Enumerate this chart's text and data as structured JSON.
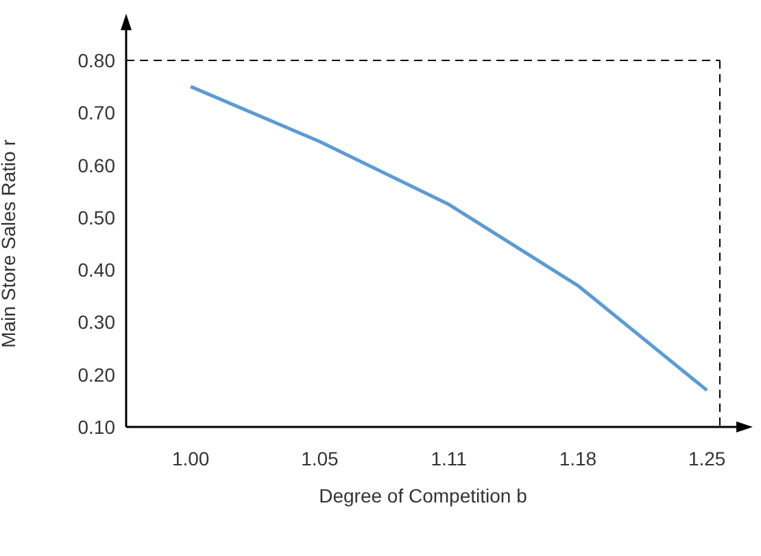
{
  "chart_data": {
    "type": "line",
    "xlabel": "Degree of Competition b",
    "ylabel": "Main Store Sales Ratio r",
    "categories": [
      "1.00",
      "1.05",
      "1.11",
      "1.18",
      "1.25"
    ],
    "series": [
      {
        "color": "#5b9bd5",
        "values": [
          0.75,
          0.645,
          0.525,
          0.37,
          0.17
        ]
      }
    ],
    "ylim": [
      0.1,
      0.8
    ],
    "yticks": [
      {
        "value": 0.1,
        "label": "0.10"
      },
      {
        "value": 0.2,
        "label": "0.20"
      },
      {
        "value": 0.3,
        "label": "0.30"
      },
      {
        "value": 0.4,
        "label": "0.40"
      },
      {
        "value": 0.5,
        "label": "0.50"
      },
      {
        "value": 0.6,
        "label": "0.60"
      },
      {
        "value": 0.7,
        "label": "0.70"
      },
      {
        "value": 0.8,
        "label": "0.80"
      }
    ],
    "ref_lines": [
      {
        "axis": "y",
        "value": 0.8,
        "line_style": "dashed",
        "color": "#000000"
      }
    ],
    "grid": false,
    "marker": "none",
    "line_style": "solid"
  }
}
